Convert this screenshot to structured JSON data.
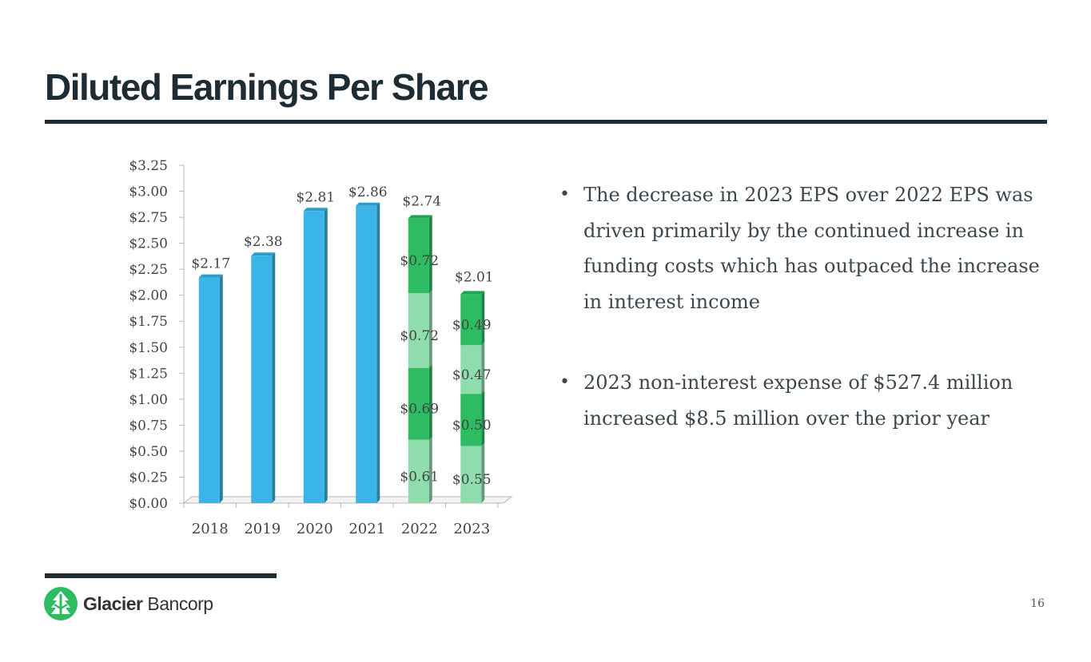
{
  "slide": {
    "title": "Diluted Earnings Per Share",
    "page_number": "16"
  },
  "bullets": [
    {
      "marker": "•",
      "text": "The decrease in 2023 EPS over 2022 EPS was driven primarily by the continued increase in funding costs which has outpaced the increase in interest income"
    },
    {
      "marker": "•",
      "text": "2023 non-interest expense of $527.4 million increased $8.5 million over the prior year"
    }
  ],
  "logo": {
    "name_bold": "Glacier",
    "name_light": " Bancorp",
    "icon": "glacier-mountain-icon"
  },
  "colors": {
    "title": "#1e2d35",
    "annual_bar": "#3bb5e8",
    "quarter_dark": "#2ebc62",
    "quarter_light": "#8fdcad"
  },
  "chart_data": {
    "type": "bar",
    "title": "",
    "xlabel": "",
    "ylabel": "",
    "ylim": [
      0,
      3.25
    ],
    "y_ticks": [
      "$0.00",
      "$0.25",
      "$0.50",
      "$0.75",
      "$1.00",
      "$1.25",
      "$1.50",
      "$1.75",
      "$2.00",
      "$2.25",
      "$2.50",
      "$2.75",
      "$3.00",
      "$3.25"
    ],
    "categories": [
      "2018",
      "2019",
      "2020",
      "2021",
      "2022",
      "2023"
    ],
    "annual": [
      {
        "year": "2018",
        "value": 2.17,
        "label": "$2.17"
      },
      {
        "year": "2019",
        "value": 2.38,
        "label": "$2.38"
      },
      {
        "year": "2020",
        "value": 2.81,
        "label": "$2.81"
      },
      {
        "year": "2021",
        "value": 2.86,
        "label": "$2.86"
      }
    ],
    "quarterly": [
      {
        "year": "2022",
        "total": 2.74,
        "total_label": "$2.74",
        "quarters": [
          {
            "value": 0.61,
            "label": "$0.61"
          },
          {
            "value": 0.69,
            "label": "$0.69"
          },
          {
            "value": 0.72,
            "label": "$0.72"
          },
          {
            "value": 0.72,
            "label": "$0.72"
          }
        ]
      },
      {
        "year": "2023",
        "total": 2.01,
        "total_label": "$2.01",
        "quarters": [
          {
            "value": 0.55,
            "label": "$0.55"
          },
          {
            "value": 0.5,
            "label": "$0.50"
          },
          {
            "value": 0.47,
            "label": "$0.47"
          },
          {
            "value": 0.49,
            "label": "$0.49"
          }
        ]
      }
    ]
  }
}
